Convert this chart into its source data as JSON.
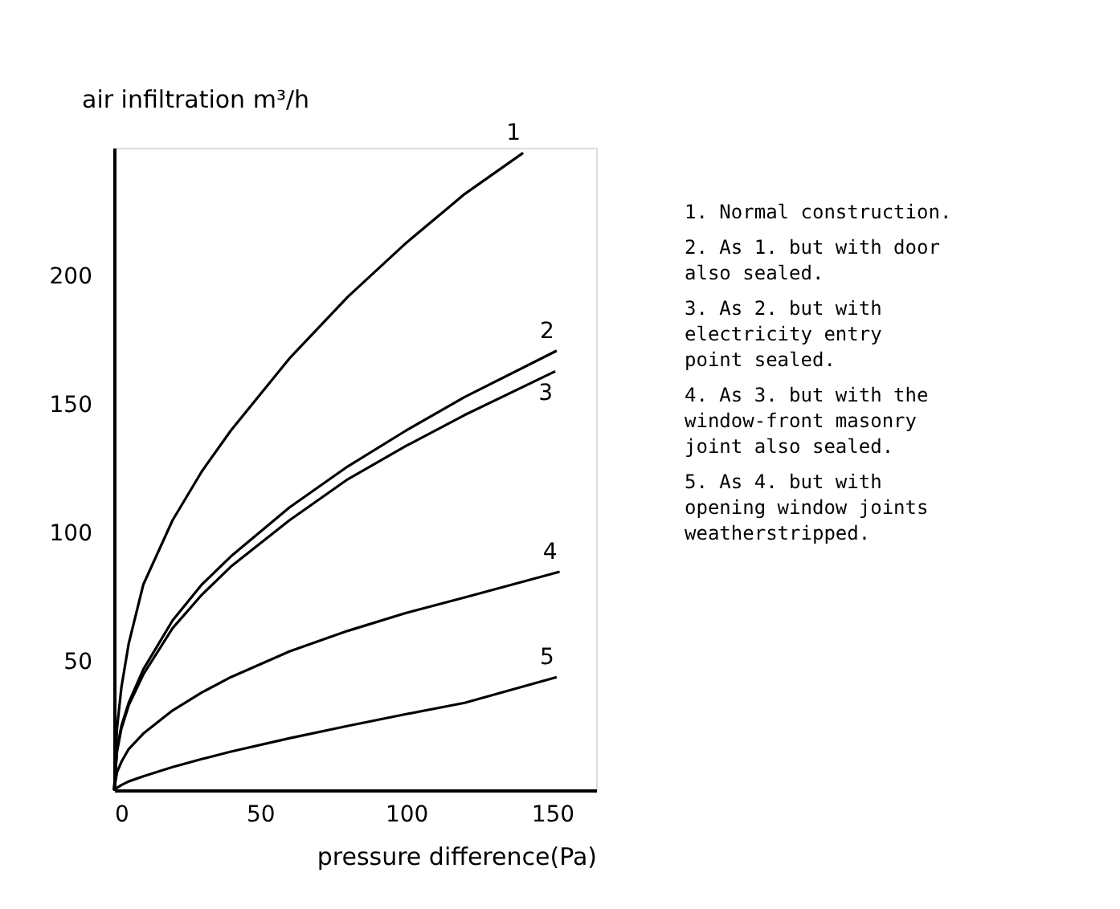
{
  "chart_data": {
    "type": "line",
    "xlabel": "pressure difference(Pa)",
    "ylabel": "air infiltration m³/h",
    "xlim": [
      0,
      165
    ],
    "ylim": [
      0,
      250
    ],
    "xticks": [
      0,
      50,
      100,
      150
    ],
    "yticks": [
      50,
      100,
      150,
      200
    ],
    "grid": false,
    "marker": "none",
    "line_style": "solid",
    "series": [
      {
        "name": "1",
        "color": "#000000",
        "x": [
          0,
          1,
          2.5,
          5,
          10,
          20,
          30,
          40,
          60,
          80,
          100,
          120,
          140
        ],
        "values": [
          0,
          24,
          40,
          57,
          80,
          105,
          124,
          140,
          168,
          192,
          213,
          232,
          248
        ]
      },
      {
        "name": "2",
        "color": "#000000",
        "x": [
          0,
          1,
          2.5,
          5,
          10,
          20,
          30,
          40,
          60,
          80,
          100,
          120,
          151.5
        ],
        "values": [
          0,
          16,
          25,
          34,
          47,
          66,
          80,
          91,
          110,
          126,
          140,
          153,
          171
        ]
      },
      {
        "name": "3",
        "color": "#000000",
        "x": [
          0,
          1,
          2.5,
          5,
          10,
          20,
          30,
          40,
          60,
          80,
          100,
          120,
          151
        ],
        "values": [
          0,
          15,
          24,
          33,
          45,
          63,
          76,
          87,
          105,
          121,
          134,
          146,
          163
        ]
      },
      {
        "name": "4",
        "color": "#000000",
        "x": [
          0,
          1,
          2.5,
          5,
          10,
          20,
          30,
          40,
          60,
          80,
          100,
          120,
          152.5
        ],
        "values": [
          0,
          7,
          11,
          16,
          22,
          31,
          38,
          44,
          54,
          62,
          69,
          75,
          85
        ]
      },
      {
        "name": "5",
        "color": "#000000",
        "x": [
          0,
          1,
          2.5,
          5,
          10,
          20,
          30,
          40,
          60,
          80,
          100,
          120,
          151.5
        ],
        "values": [
          0,
          0.9,
          2,
          3.4,
          5.4,
          9,
          12.1,
          15,
          20.2,
          25,
          29.6,
          34,
          44
        ]
      }
    ],
    "annotations": [
      "1. Normal construction.",
      "2. As 1. but with door also sealed.",
      "3. As 2. but with electricity entry point sealed.",
      "4. As 3. but with the window-front masonry joint also sealed.",
      "5. As 4. but with opening window joints weatherstripped."
    ]
  }
}
